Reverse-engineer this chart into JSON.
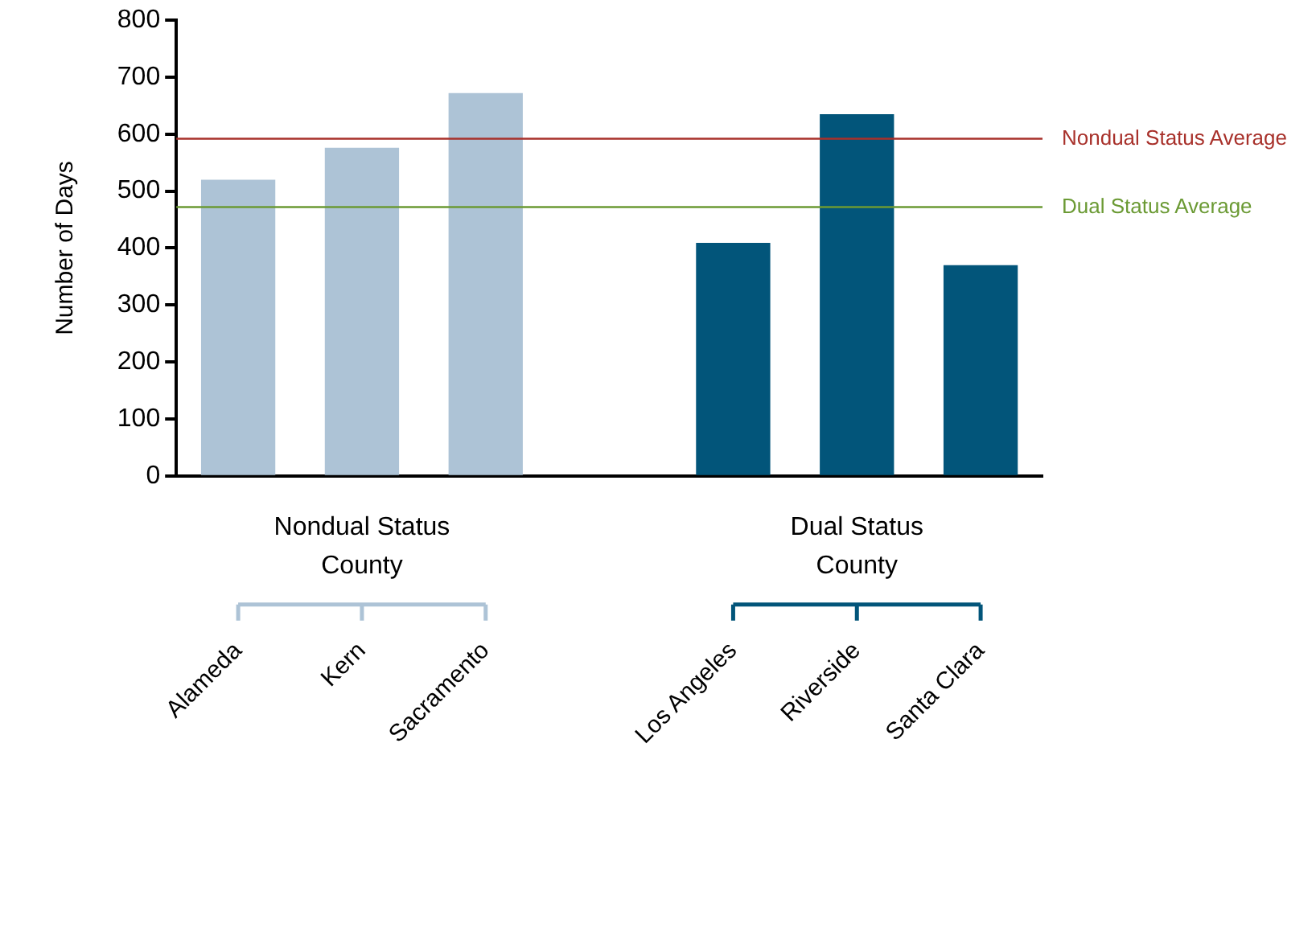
{
  "chart_data": {
    "type": "bar",
    "ylabel": "Number of Days",
    "categories": [
      "Alameda",
      "Kern",
      "Sacramento",
      null,
      "Los Angeles",
      "Riverside",
      "Santa Clara"
    ],
    "values": [
      520,
      576,
      672,
      null,
      409,
      635,
      370
    ],
    "colors": [
      "#adc3d6",
      "#adc3d6",
      "#adc3d6",
      null,
      "#02557a",
      "#02557a",
      "#02557a"
    ],
    "ylim": [
      0,
      800
    ],
    "yticks": [
      0,
      100,
      200,
      300,
      400,
      500,
      600,
      700,
      800
    ],
    "grid": false,
    "legend": false,
    "ref_lines": [
      {
        "axis": "y",
        "value": 592,
        "label": "Nondual Status Average",
        "color": "#a8312b"
      },
      {
        "axis": "y",
        "value": 472,
        "label": "Dual Status Average",
        "color": "#6b9a34"
      }
    ],
    "annotations": [
      "Nondual Status County",
      "Dual Status County"
    ]
  }
}
